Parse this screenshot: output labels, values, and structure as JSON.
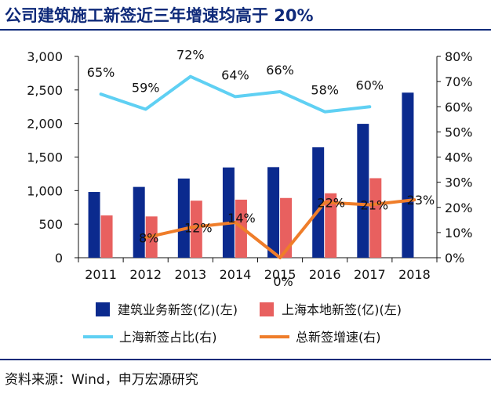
{
  "title": "公司建筑施工新签近三年增速均高于 20%",
  "source": "资料来源：Wind，申万宏源研究",
  "colors": {
    "title": "#0f2a7a",
    "bar_national": "#0b2a8e",
    "bar_shanghai": "#e8605f",
    "line_share": "#5fd0f3",
    "line_growth": "#ef7d2a",
    "axis": "#111111"
  },
  "chart_data": {
    "type": "bar+line",
    "categories": [
      "2011",
      "2012",
      "2013",
      "2014",
      "2015",
      "2016",
      "2017",
      "2018"
    ],
    "y_left": {
      "ylim": [
        0,
        3000
      ],
      "ticks": [
        0,
        500,
        1000,
        1500,
        2000,
        2500,
        3000
      ],
      "tick_labels": [
        "0",
        "500",
        "1,000",
        "1,500",
        "2,000",
        "2,500",
        "3,000"
      ]
    },
    "y_right": {
      "ylim": [
        0,
        0.8
      ],
      "ticks": [
        0,
        0.1,
        0.2,
        0.3,
        0.4,
        0.5,
        0.6,
        0.7,
        0.8
      ],
      "tick_labels": [
        "0%",
        "10%",
        "20%",
        "30%",
        "40%",
        "50%",
        "60%",
        "70%",
        "80%"
      ]
    },
    "series": [
      {
        "name": "建筑业务新签(亿)(左)",
        "type": "bar",
        "axis": "left",
        "values": [
          980,
          1055,
          1180,
          1345,
          1350,
          1645,
          1995,
          2460
        ]
      },
      {
        "name": "上海本地新签(亿)(左)",
        "type": "bar",
        "axis": "left",
        "values": [
          630,
          615,
          850,
          865,
          890,
          960,
          1185,
          null
        ]
      },
      {
        "name": "上海新签占比(右)",
        "type": "line",
        "axis": "right",
        "values": [
          0.65,
          0.59,
          0.72,
          0.64,
          0.66,
          0.58,
          0.6,
          null
        ],
        "labels": [
          "65%",
          "59%",
          "72%",
          "64%",
          "66%",
          "58%",
          "60%",
          ""
        ]
      },
      {
        "name": "总新签增速(右)",
        "type": "line",
        "axis": "right",
        "values": [
          null,
          0.08,
          0.12,
          0.14,
          0.0,
          0.22,
          0.21,
          0.23
        ],
        "labels": [
          "",
          "8%",
          "12%",
          "14%",
          "0%",
          "22%",
          "21%",
          "23%"
        ]
      }
    ],
    "grid": false,
    "legend_position": "bottom"
  }
}
